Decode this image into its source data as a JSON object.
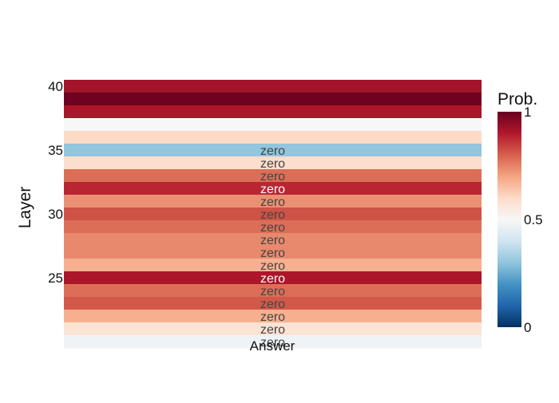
{
  "chart_data": {
    "type": "heatmap",
    "x_category": "Answer",
    "xlabel": "Answer",
    "ylabel": "Layer",
    "y_ticks": [
      25,
      30,
      35,
      40
    ],
    "y_range": [
      21,
      40
    ],
    "rows": [
      {
        "layer": 40,
        "prob": 0.92,
        "label": ""
      },
      {
        "layer": 39,
        "prob": 0.99,
        "label": ""
      },
      {
        "layer": 38,
        "prob": 0.91,
        "label": ""
      },
      {
        "layer": 37,
        "prob": 0.5,
        "label": ""
      },
      {
        "layer": 36,
        "prob": 0.6,
        "label": ""
      },
      {
        "layer": 35,
        "prob": 0.3,
        "label": "zero"
      },
      {
        "layer": 34,
        "prob": 0.59,
        "label": "zero"
      },
      {
        "layer": 33,
        "prob": 0.78,
        "label": "zero"
      },
      {
        "layer": 32,
        "prob": 0.88,
        "label": "zero"
      },
      {
        "layer": 31,
        "prob": 0.73,
        "label": "zero"
      },
      {
        "layer": 30,
        "prob": 0.82,
        "label": "zero"
      },
      {
        "layer": 29,
        "prob": 0.78,
        "label": "zero"
      },
      {
        "layer": 28,
        "prob": 0.74,
        "label": "zero"
      },
      {
        "layer": 27,
        "prob": 0.74,
        "label": "zero"
      },
      {
        "layer": 26,
        "prob": 0.68,
        "label": "zero"
      },
      {
        "layer": 25,
        "prob": 0.91,
        "label": "zero"
      },
      {
        "layer": 24,
        "prob": 0.78,
        "label": "zero"
      },
      {
        "layer": 23,
        "prob": 0.81,
        "label": "zero"
      },
      {
        "layer": 22,
        "prob": 0.68,
        "label": "zero"
      },
      {
        "layer": 21,
        "prob": 0.57,
        "label": "zero"
      },
      {
        "layer": 20,
        "prob": 0.48,
        "label": "zero"
      }
    ],
    "colorscale": {
      "name": "RdBu",
      "title": "Prob.",
      "range": [
        0,
        1
      ],
      "ticks": [
        {
          "value": 1,
          "label": "1"
        },
        {
          "value": 0.5,
          "label": "0.5"
        },
        {
          "value": 0,
          "label": "0"
        }
      ],
      "stops": [
        "#053061",
        "#2166ac",
        "#4393c3",
        "#92c5de",
        "#d1e5f0",
        "#f7f7f7",
        "#fddbc7",
        "#f4a582",
        "#d6604d",
        "#b2182b",
        "#67001f"
      ]
    }
  }
}
